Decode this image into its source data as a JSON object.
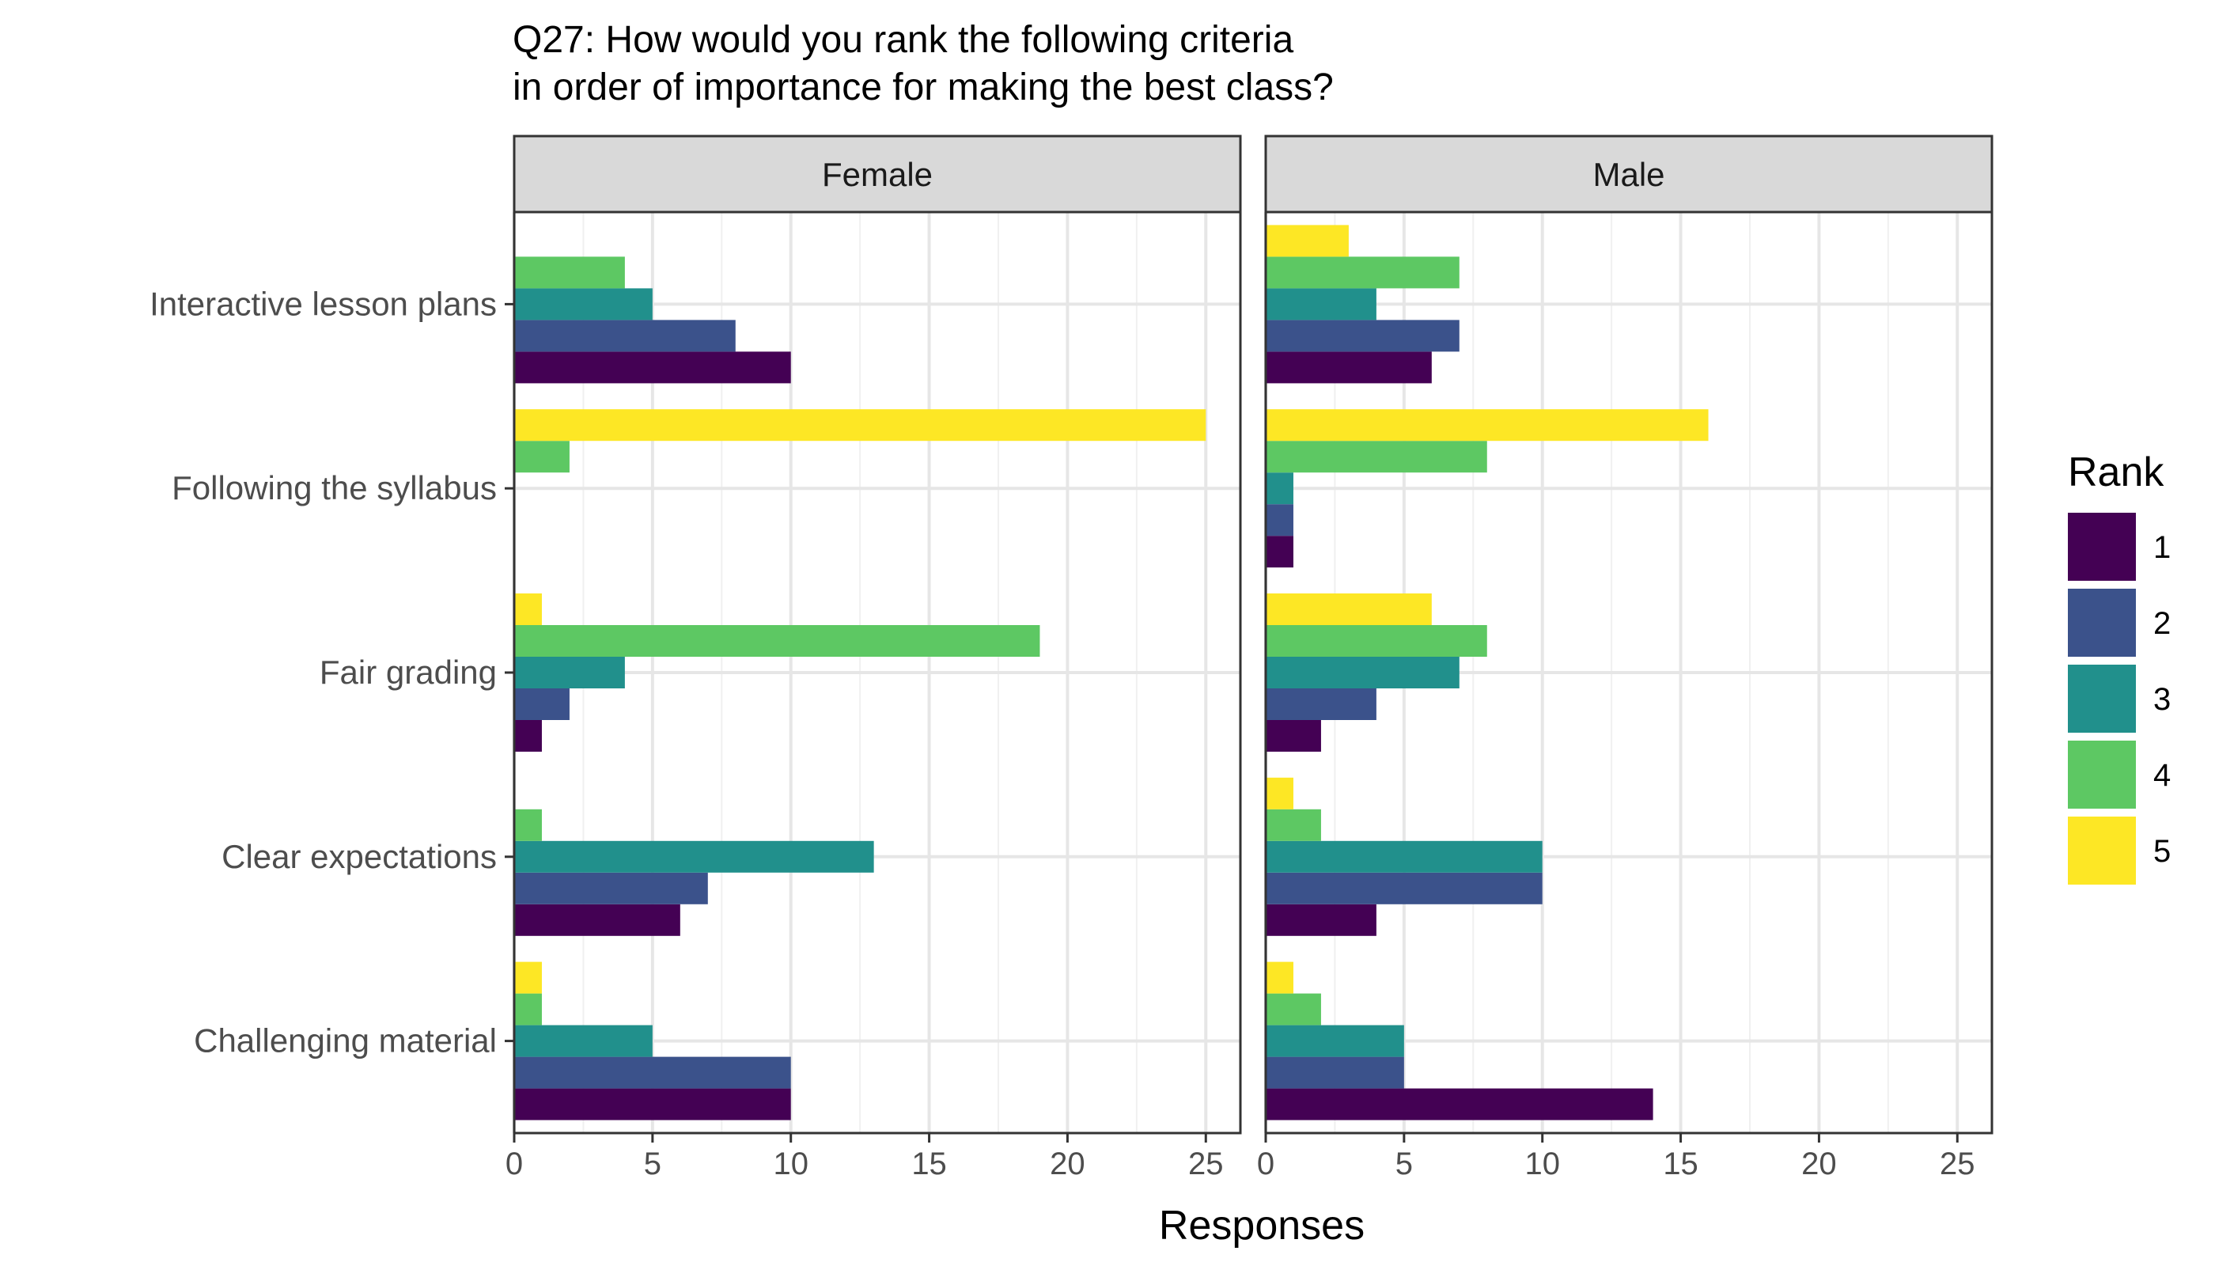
{
  "chart_data": {
    "type": "bar",
    "orientation": "horizontal",
    "title_lines": [
      "Q27: How would you rank the following criteria",
      " in order of importance for making the best class?"
    ],
    "xlabel": "Responses",
    "ylabel": "",
    "xlim": [
      0,
      26.25
    ],
    "x_ticks": [
      0,
      5,
      10,
      15,
      20,
      25
    ],
    "grid": true,
    "categories": [
      "Interactive lesson plans",
      "Following the syllabus",
      "Fair grading",
      "Clear expectations",
      "Challenging material"
    ],
    "legend": {
      "title": "Rank",
      "placement": "right",
      "items": [
        {
          "label": "1",
          "color": "#440154"
        },
        {
          "label": "2",
          "color": "#3B528B"
        },
        {
          "label": "3",
          "color": "#21908C"
        },
        {
          "label": "4",
          "color": "#5DC863"
        },
        {
          "label": "5",
          "color": "#FDE725"
        }
      ]
    },
    "panels": [
      {
        "name": "Female",
        "series": [
          {
            "name": "1",
            "values": [
              10,
              0,
              1,
              6,
              10
            ]
          },
          {
            "name": "2",
            "values": [
              8,
              0,
              2,
              7,
              10
            ]
          },
          {
            "name": "3",
            "values": [
              5,
              0,
              4,
              13,
              5
            ]
          },
          {
            "name": "4",
            "values": [
              4,
              2,
              19,
              1,
              1
            ]
          },
          {
            "name": "5",
            "values": [
              0,
              25,
              1,
              0,
              1
            ]
          }
        ]
      },
      {
        "name": "Male",
        "series": [
          {
            "name": "1",
            "values": [
              6,
              1,
              2,
              4,
              14
            ]
          },
          {
            "name": "2",
            "values": [
              7,
              1,
              4,
              10,
              5
            ]
          },
          {
            "name": "3",
            "values": [
              4,
              1,
              7,
              10,
              5
            ]
          },
          {
            "name": "4",
            "values": [
              7,
              8,
              8,
              2,
              2
            ]
          },
          {
            "name": "5",
            "values": [
              3,
              16,
              6,
              1,
              1
            ]
          }
        ]
      }
    ]
  }
}
